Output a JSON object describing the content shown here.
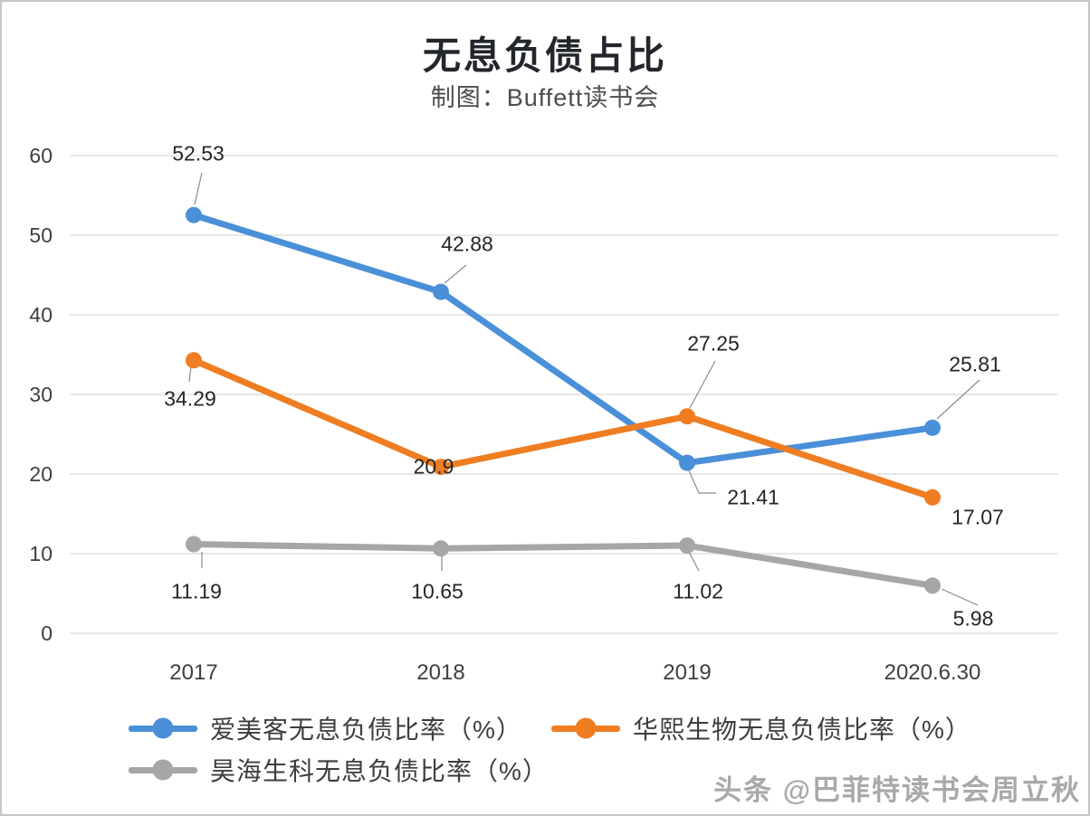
{
  "title": "无息负债占比",
  "subtitle": "制图：Buffett读书会",
  "watermark": "头条 @巴菲特读书会周立秋",
  "chart_data": {
    "type": "line",
    "title": "无息负债占比",
    "subtitle": "制图：Buffett读书会",
    "categories": [
      "2017",
      "2018",
      "2019",
      "2020.6.30"
    ],
    "xlabel": "",
    "ylabel": "",
    "ylim": [
      0,
      60
    ],
    "yticks": [
      0,
      10,
      20,
      30,
      40,
      50,
      60
    ],
    "grid": true,
    "legend_position": "bottom",
    "marker": "circle",
    "grid_color": "#d9d9d9",
    "leader_line_color": "#8c8c8c",
    "series": [
      {
        "name": "爱美客无息负债比率（%）",
        "color": "#4a90d8",
        "values": [
          52.53,
          42.88,
          21.41,
          25.81
        ],
        "labels": [
          "52.53",
          "42.88",
          "21.41",
          "25.81"
        ]
      },
      {
        "name": "华熙生物无息负债比率（%）",
        "color": "#ef7d22",
        "values": [
          34.29,
          20.9,
          27.25,
          17.07
        ],
        "labels": [
          "34.29",
          "20.9",
          "27.25",
          "17.07"
        ]
      },
      {
        "name": "昊海生科无息负债比率（%）",
        "color": "#a6a6a6",
        "values": [
          11.19,
          10.65,
          11.02,
          5.98
        ],
        "labels": [
          "11.19",
          "10.65",
          "11.02",
          "5.98"
        ]
      }
    ]
  }
}
